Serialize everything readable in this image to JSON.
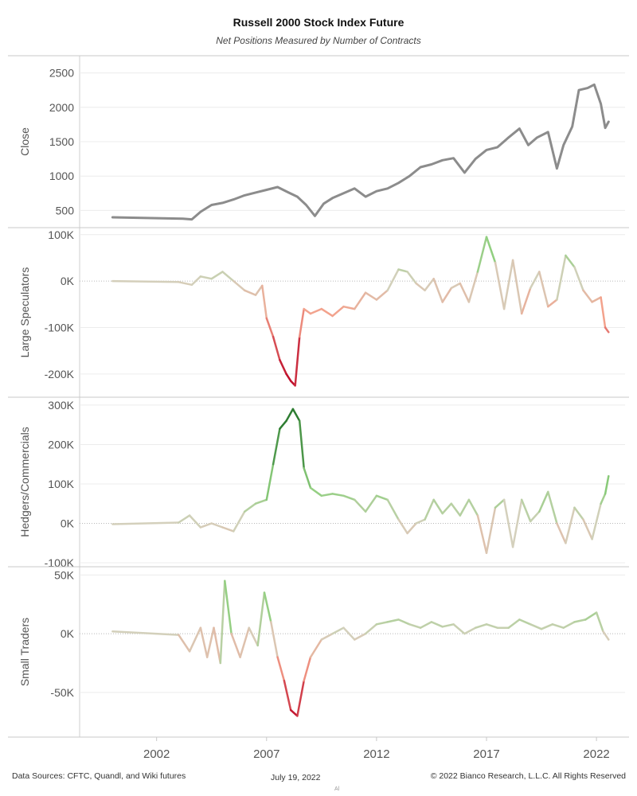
{
  "title": "Russell 2000 Stock Index Future",
  "subtitle": "Net Positions Measured by Number of Contracts",
  "footer": {
    "sources": "Data Sources: CFTC, Quandl, and Wiki futures",
    "date": "July 19, 2022",
    "copyright": "© 2022 Bianco Research, L.L.C. All Rights Reserved",
    "mark": "Al"
  },
  "colors": {
    "close_line": "#8c8c8c",
    "positive_strong": "#2e7d32",
    "positive_mild": "#8fcf7e",
    "neutral": "#d4d0bc",
    "negative_mild": "#f4a08a",
    "negative_strong": "#c0102c",
    "gridline": "#ececec",
    "zero_line": "#b8b8b8",
    "axis_text": "#555555"
  },
  "chart_data": {
    "type": "line",
    "x_axis": {
      "ticks": [
        "2002",
        "2007",
        "2012",
        "2017",
        "2022"
      ],
      "range": [
        1998.5,
        2023.3
      ]
    },
    "panels": [
      {
        "id": "close",
        "ylabel": "Close",
        "color_mode": "single",
        "ylim": [
          250,
          2750
        ],
        "ticks": [
          500,
          1000,
          1500,
          2000,
          2500
        ],
        "tick_labels": [
          "500",
          "1000",
          "1500",
          "2000",
          "2500"
        ],
        "x": [
          2000.0,
          2003.2,
          2003.6,
          2004.0,
          2004.5,
          2005.0,
          2005.5,
          2006.0,
          2006.5,
          2007.0,
          2007.5,
          2008.0,
          2008.4,
          2008.8,
          2009.2,
          2009.6,
          2010.0,
          2010.5,
          2011.0,
          2011.5,
          2012.0,
          2012.5,
          2013.0,
          2013.5,
          2014.0,
          2014.5,
          2015.0,
          2015.5,
          2016.0,
          2016.5,
          2017.0,
          2017.5,
          2018.0,
          2018.5,
          2018.9,
          2019.3,
          2019.8,
          2020.2,
          2020.5,
          2020.9,
          2021.2,
          2021.6,
          2021.9,
          2022.2,
          2022.4,
          2022.55
        ],
        "y": [
          400,
          380,
          370,
          480,
          580,
          610,
          660,
          720,
          760,
          800,
          840,
          760,
          700,
          580,
          420,
          600,
          680,
          750,
          820,
          700,
          780,
          820,
          900,
          1000,
          1130,
          1170,
          1230,
          1260,
          1050,
          1250,
          1380,
          1420,
          1560,
          1690,
          1450,
          1560,
          1640,
          1110,
          1450,
          1720,
          2250,
          2280,
          2330,
          2050,
          1700,
          1790
        ]
      },
      {
        "id": "large",
        "ylabel": "Large Speculators",
        "color_mode": "diverging",
        "ylim": [
          -250000,
          115000
        ],
        "ticks": [
          -200000,
          -100000,
          0,
          100000
        ],
        "tick_labels": [
          "-200K",
          "-100K",
          "0K",
          "100K"
        ],
        "color_scale": 200000,
        "x": [
          2000.0,
          2003.0,
          2003.6,
          2004.0,
          2004.5,
          2005.0,
          2005.5,
          2006.0,
          2006.5,
          2006.8,
          2007.0,
          2007.3,
          2007.6,
          2007.9,
          2008.1,
          2008.3,
          2008.5,
          2008.7,
          2009.0,
          2009.5,
          2010.0,
          2010.5,
          2011.0,
          2011.5,
          2012.0,
          2012.5,
          2013.0,
          2013.4,
          2013.8,
          2014.2,
          2014.6,
          2015.0,
          2015.4,
          2015.8,
          2016.2,
          2016.6,
          2017.0,
          2017.4,
          2017.8,
          2018.2,
          2018.6,
          2019.0,
          2019.4,
          2019.8,
          2020.2,
          2020.6,
          2021.0,
          2021.4,
          2021.8,
          2022.2,
          2022.4,
          2022.55
        ],
        "y": [
          0,
          -2000,
          -8000,
          10000,
          5000,
          20000,
          0,
          -20000,
          -30000,
          -10000,
          -80000,
          -120000,
          -170000,
          -200000,
          -215000,
          -225000,
          -120000,
          -60000,
          -70000,
          -60000,
          -75000,
          -55000,
          -60000,
          -25000,
          -40000,
          -20000,
          25000,
          20000,
          -5000,
          -20000,
          5000,
          -45000,
          -15000,
          -5000,
          -45000,
          20000,
          95000,
          40000,
          -60000,
          45000,
          -70000,
          -15000,
          20000,
          -55000,
          -40000,
          55000,
          30000,
          -20000,
          -45000,
          -35000,
          -100000,
          -110000
        ]
      },
      {
        "id": "hedgers",
        "ylabel": "Hedgers/Commercials",
        "color_mode": "diverging",
        "ylim": [
          -110000,
          320000
        ],
        "ticks": [
          -100000,
          0,
          100000,
          200000,
          300000
        ],
        "tick_labels": [
          "-100K",
          "0K",
          "100K",
          "200K",
          "300K"
        ],
        "color_scale": 250000,
        "x": [
          2000.0,
          2003.0,
          2003.5,
          2004.0,
          2004.5,
          2005.0,
          2005.5,
          2006.0,
          2006.5,
          2007.0,
          2007.3,
          2007.6,
          2007.9,
          2008.2,
          2008.5,
          2008.7,
          2009.0,
          2009.5,
          2010.0,
          2010.5,
          2011.0,
          2011.5,
          2012.0,
          2012.5,
          2013.0,
          2013.4,
          2013.8,
          2014.2,
          2014.6,
          2015.0,
          2015.4,
          2015.8,
          2016.2,
          2016.6,
          2017.0,
          2017.4,
          2017.8,
          2018.2,
          2018.6,
          2019.0,
          2019.4,
          2019.8,
          2020.2,
          2020.6,
          2021.0,
          2021.4,
          2021.8,
          2022.2,
          2022.4,
          2022.55
        ],
        "y": [
          -2000,
          2000,
          20000,
          -10000,
          0,
          -10000,
          -20000,
          30000,
          50000,
          60000,
          150000,
          240000,
          260000,
          290000,
          260000,
          140000,
          90000,
          70000,
          75000,
          70000,
          60000,
          30000,
          70000,
          60000,
          10000,
          -25000,
          0,
          10000,
          60000,
          25000,
          50000,
          20000,
          60000,
          20000,
          -75000,
          40000,
          60000,
          -60000,
          60000,
          5000,
          30000,
          80000,
          0,
          -50000,
          40000,
          10000,
          -40000,
          50000,
          75000,
          120000
        ]
      },
      {
        "id": "small",
        "ylabel": "Small Traders",
        "color_mode": "diverging",
        "ylim": [
          -88000,
          57000
        ],
        "ticks": [
          -50000,
          0,
          50000
        ],
        "tick_labels": [
          "-50K",
          "0K",
          "50K"
        ],
        "color_scale": 70000,
        "x": [
          2000.0,
          2003.0,
          2003.5,
          2004.0,
          2004.3,
          2004.6,
          2004.9,
          2005.1,
          2005.4,
          2005.8,
          2006.2,
          2006.6,
          2006.9,
          2007.2,
          2007.5,
          2007.8,
          2008.1,
          2008.4,
          2008.7,
          2009.0,
          2009.5,
          2010.0,
          2010.5,
          2011.0,
          2011.5,
          2012.0,
          2012.5,
          2013.0,
          2013.5,
          2014.0,
          2014.5,
          2015.0,
          2015.5,
          2016.0,
          2016.5,
          2017.0,
          2017.5,
          2018.0,
          2018.5,
          2019.0,
          2019.5,
          2020.0,
          2020.5,
          2021.0,
          2021.5,
          2022.0,
          2022.3,
          2022.55
        ],
        "y": [
          2000,
          -1000,
          -15000,
          5000,
          -20000,
          5000,
          -25000,
          45000,
          0,
          -20000,
          5000,
          -10000,
          35000,
          10000,
          -20000,
          -40000,
          -65000,
          -70000,
          -40000,
          -20000,
          -5000,
          0,
          5000,
          -5000,
          0,
          8000,
          10000,
          12000,
          8000,
          5000,
          10000,
          6000,
          8000,
          0,
          5000,
          8000,
          5000,
          5000,
          12000,
          8000,
          4000,
          8000,
          5000,
          10000,
          12000,
          18000,
          2000,
          -5000
        ]
      }
    ]
  }
}
